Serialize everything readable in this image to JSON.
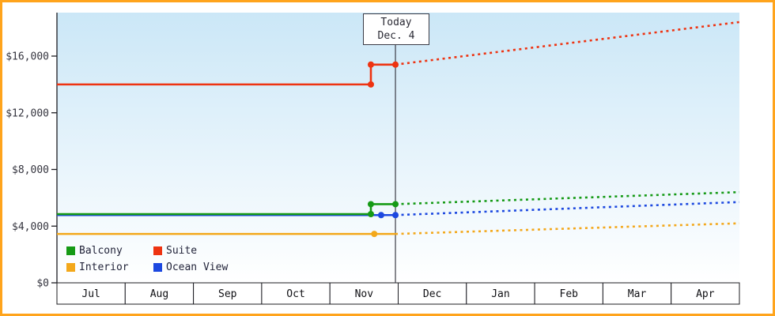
{
  "chart_data": {
    "type": "line",
    "x_axis": {
      "months": [
        "Jul",
        "Aug",
        "Sep",
        "Oct",
        "Nov",
        "Dec",
        "Jan",
        "Feb",
        "Mar",
        "Apr"
      ],
      "span_months": 10
    },
    "y_axis": {
      "tick_labels": [
        "$0",
        "$4,000",
        "$8,000",
        "$12,000",
        "$16,000"
      ],
      "tick_values": [
        0,
        4000,
        8000,
        12000,
        16000
      ],
      "range": [
        0,
        19000
      ]
    },
    "today": {
      "label": "Today",
      "date": "Dec. 4",
      "t": 4.96
    },
    "series": [
      {
        "name": "Balcony",
        "color": "#159a15",
        "history": [
          [
            0,
            4850
          ],
          [
            4.6,
            4850
          ],
          [
            4.6,
            5550
          ],
          [
            4.96,
            5550
          ]
        ],
        "markers": [
          [
            4.6,
            4850
          ],
          [
            4.6,
            5550
          ],
          [
            4.96,
            5550
          ]
        ],
        "forecast": [
          [
            4.96,
            5550
          ],
          [
            10,
            6400
          ]
        ]
      },
      {
        "name": "Suite",
        "color": "#ee3311",
        "history": [
          [
            0,
            14000
          ],
          [
            4.6,
            14000
          ],
          [
            4.6,
            15400
          ],
          [
            4.96,
            15400
          ]
        ],
        "markers": [
          [
            4.6,
            14000
          ],
          [
            4.6,
            15400
          ],
          [
            4.96,
            15400
          ]
        ],
        "forecast": [
          [
            4.96,
            15400
          ],
          [
            10,
            18400
          ]
        ]
      },
      {
        "name": "Interior",
        "color": "#f3a81b",
        "history": [
          [
            0,
            3450
          ],
          [
            4.96,
            3450
          ]
        ],
        "markers": [
          [
            4.65,
            3450
          ]
        ],
        "forecast": [
          [
            4.96,
            3450
          ],
          [
            10,
            4200
          ]
        ]
      },
      {
        "name": "Ocean View",
        "color": "#1c48e0",
        "history": [
          [
            0,
            4780
          ],
          [
            4.96,
            4780
          ]
        ],
        "markers": [
          [
            4.75,
            4780
          ],
          [
            4.96,
            4780
          ]
        ],
        "forecast": [
          [
            4.96,
            4780
          ],
          [
            10,
            5700
          ]
        ]
      }
    ],
    "legend": {
      "position": "bottom-left",
      "order": [
        "Balcony",
        "Suite",
        "Interior",
        "Ocean View"
      ]
    }
  },
  "colors": {
    "frame_border": "#ffa41c",
    "plot_top": "#cbe7f7",
    "plot_bottom": "#ffffff",
    "axis": "#1c1c22",
    "today_line": "#3c3c46",
    "tick_text": "#35353f",
    "month_text": "#101014",
    "cell_fill": "#ffffff"
  }
}
